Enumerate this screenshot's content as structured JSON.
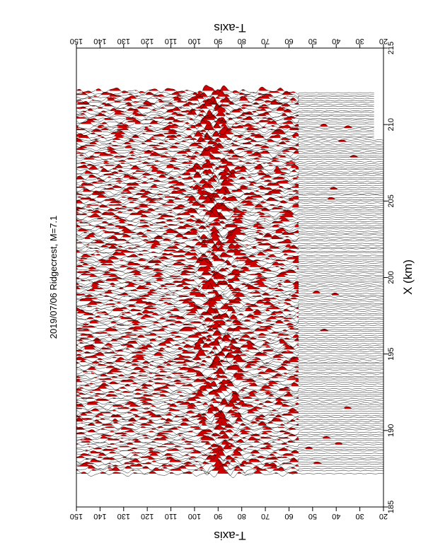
{
  "chart_data": {
    "type": "seismic-record-section",
    "title": "2019/07/06 Ridgecrest, M=7.1",
    "time_axis": {
      "label": "T-axis",
      "range": [
        20,
        150
      ],
      "ticks": [
        20,
        30,
        40,
        50,
        60,
        70,
        80,
        90,
        100,
        110,
        120,
        130,
        140,
        150
      ],
      "reversed": true
    },
    "distance_axis": {
      "label": "X (km)",
      "range": [
        185,
        215
      ],
      "ticks": [
        185,
        190,
        195,
        200,
        205,
        210,
        215
      ]
    },
    "orientation": "rotated 90 degrees; distance axis runs vertically, time axis horizontally (decreasing to the right)",
    "traces": {
      "count": 190,
      "x_range_km": [
        187.2,
        212.2
      ],
      "line_color": "#000000",
      "fill_color": "#cc0000",
      "fill": "positive lobes filled red",
      "dense_window_t": [
        56,
        150
      ],
      "quiet_window_t": [
        20,
        56
      ],
      "arrival_band_t": [
        84,
        98
      ]
    },
    "grid": false,
    "legend": "none"
  }
}
